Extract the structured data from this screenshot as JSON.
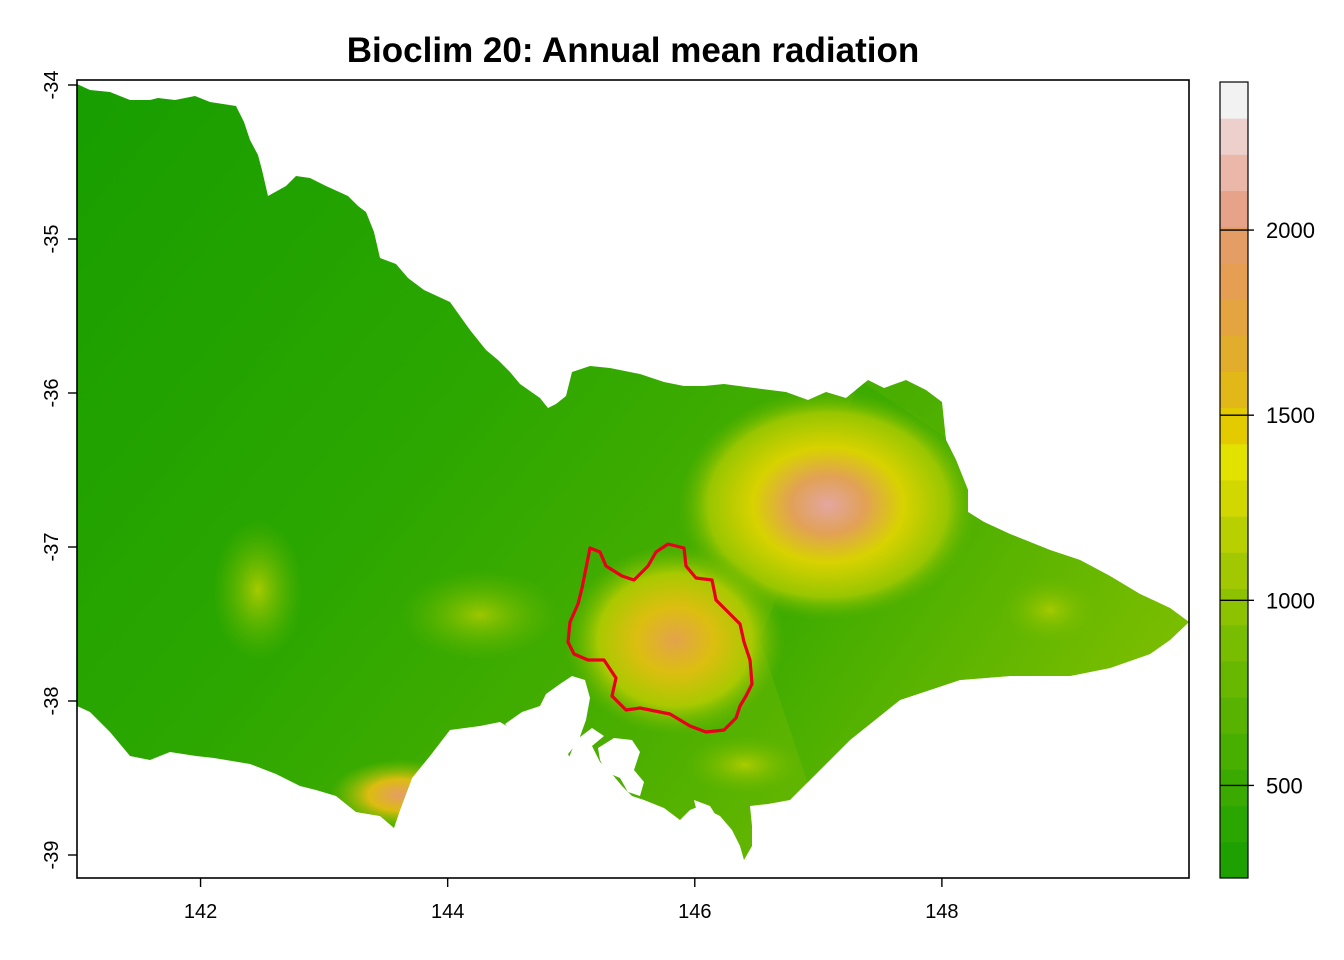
{
  "title": "Bioclim 20: Annual mean radiation",
  "x_axis": {
    "ticks": [
      142,
      144,
      146,
      148
    ],
    "labels": [
      "142",
      "144",
      "146",
      "148"
    ],
    "range": [
      141,
      150
    ]
  },
  "y_axis": {
    "ticks": [
      -34,
      -35,
      -36,
      -37,
      -38,
      -39
    ],
    "labels": [
      "-34",
      "-35",
      "-36",
      "-37",
      "-38",
      "-39"
    ],
    "range": [
      -39.15,
      -33.97
    ]
  },
  "legend": {
    "ticks": [
      500,
      1000,
      1500,
      2000
    ],
    "labels": [
      "500",
      "1000",
      "1500",
      "2000"
    ],
    "range": [
      250,
      2400
    ],
    "bins": [
      "#1ea000",
      "#2ba500",
      "#3aaa00",
      "#48ae00",
      "#57b300",
      "#68b800",
      "#79bd00",
      "#8cc200",
      "#a1c800",
      "#b8cf00",
      "#d2d700",
      "#e3e100",
      "#e3cb00",
      "#e1b818",
      "#e2ac2c",
      "#e4a440",
      "#e69e52",
      "#e59d66",
      "#e6a389",
      "#ebb7a9",
      "#edcfcc",
      "#f2f2f2"
    ]
  },
  "colors": {
    "boundary": "#e8001c",
    "outline": "#000000"
  }
}
